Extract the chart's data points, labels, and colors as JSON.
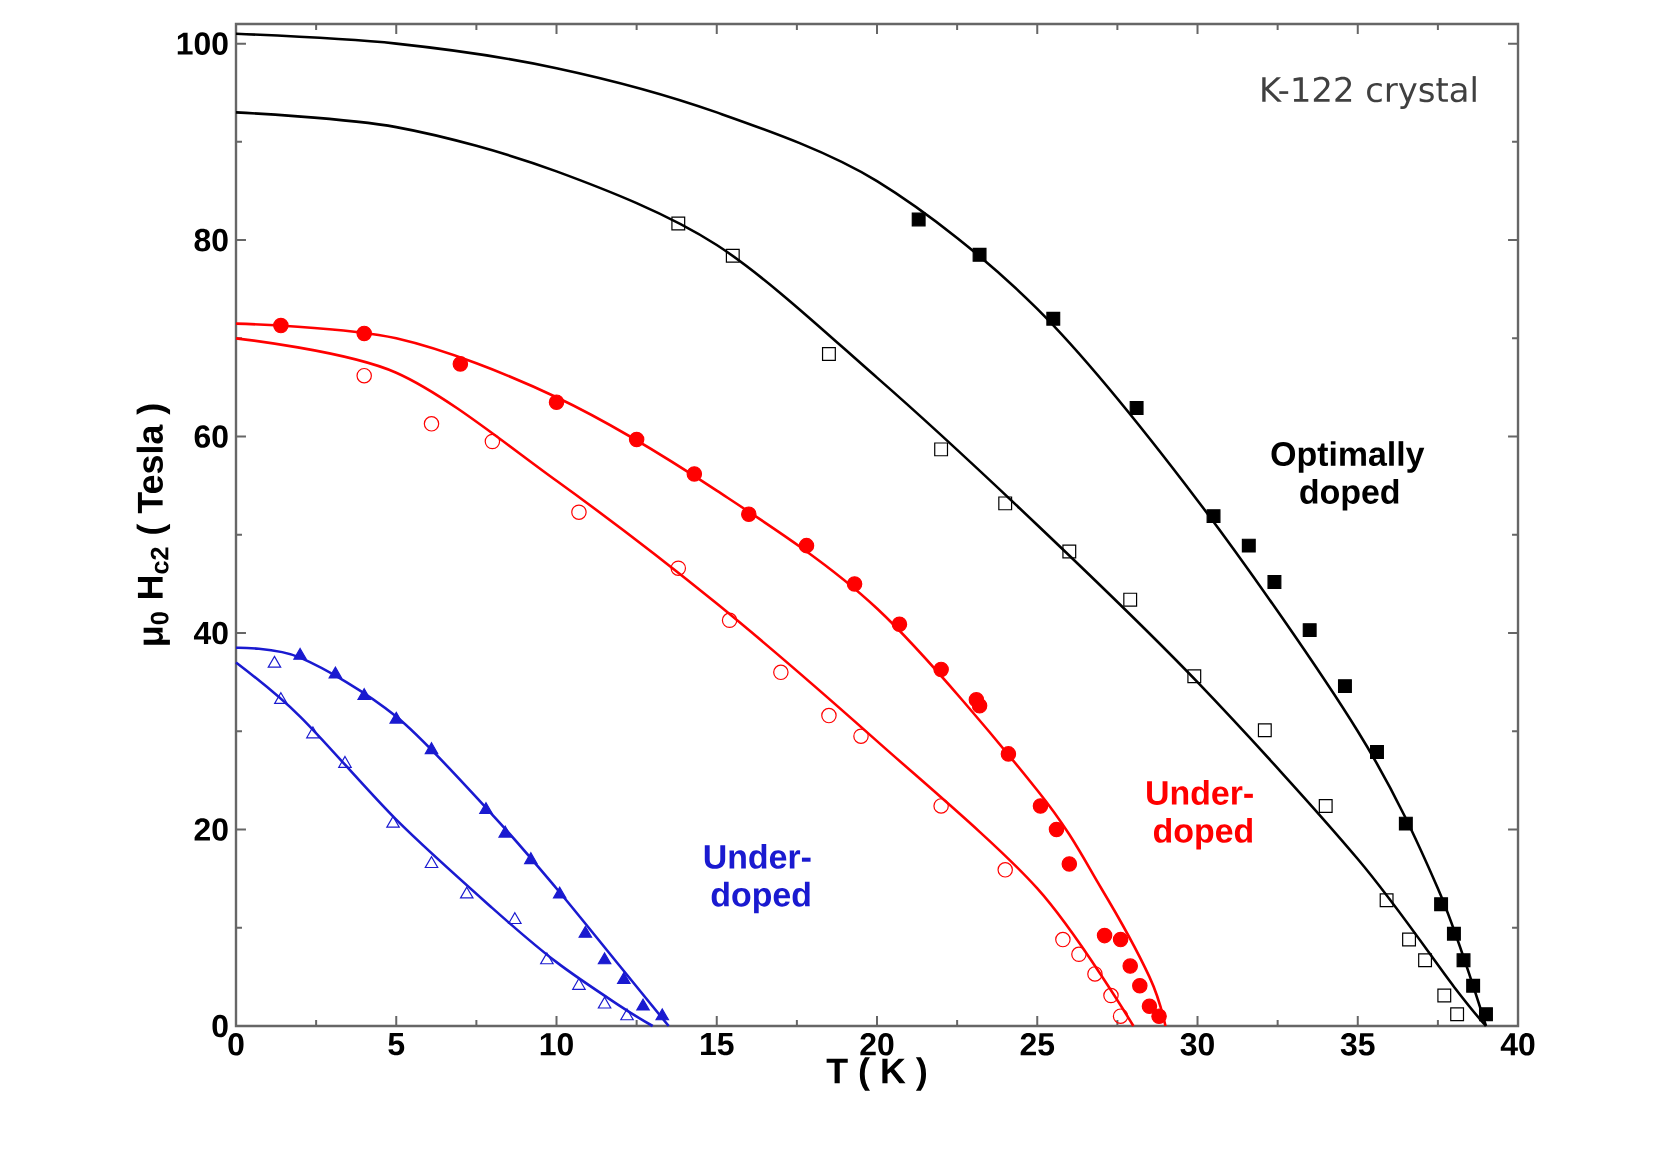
{
  "chart_data": {
    "type": "scatter",
    "xlabel": "T ( K )",
    "ylabel": "μ$_{0}$ H$_{c2}$ ( Tesla )",
    "xlim": [
      0,
      40
    ],
    "ylim": [
      0,
      102
    ],
    "xticks": [
      0,
      5,
      10,
      15,
      20,
      25,
      30,
      35,
      40
    ],
    "yticks": [
      0,
      20,
      40,
      60,
      80,
      100
    ],
    "grid": false,
    "annotations": [
      "K-122 crystal"
    ],
    "series": [
      {
        "name": "Optimally doped",
        "marker": "square",
        "color": "#000000",
        "x": [
          21.3,
          23.2,
          25.5,
          28.1,
          30.5,
          31.6,
          32.4,
          33.5,
          34.6,
          35.6,
          36.5,
          37.6,
          38.0,
          38.3,
          38.6,
          39.0
        ],
        "values": [
          82.1,
          78.5,
          72.0,
          62.9,
          51.9,
          48.9,
          45.2,
          40.3,
          34.6,
          27.9,
          20.6,
          12.4,
          9.4,
          6.7,
          4.1,
          1.2
        ]
      },
      {
        "marker": "square",
        "color": "#000000",
        "x": [
          13.8,
          15.5,
          18.5,
          22.0,
          24.0,
          26.0,
          27.9,
          29.9,
          32.1,
          34.0,
          35.9,
          36.6,
          37.1,
          37.7,
          38.1
        ],
        "values": [
          81.7,
          78.4,
          68.4,
          58.7,
          53.2,
          48.3,
          43.4,
          35.6,
          30.1,
          22.4,
          12.8,
          8.8,
          6.7,
          3.1,
          1.2
        ]
      },
      {
        "type": "line",
        "color": "#000000",
        "x": [
          0,
          5,
          10,
          15,
          20,
          25,
          30,
          35,
          37.5,
          39
        ],
        "values": [
          101,
          100,
          97.5,
          93,
          86,
          73,
          53.5,
          30,
          14,
          0
        ]
      },
      {
        "type": "line",
        "color": "#000000",
        "x": [
          0,
          5,
          10,
          15,
          20,
          25,
          30,
          35,
          38,
          39
        ],
        "values": [
          93,
          91.5,
          87,
          79.5,
          66,
          51,
          35,
          17,
          4,
          0
        ]
      },
      {
        "name": "Under-doped",
        "marker": "circle",
        "color": "#ff0000",
        "x": [
          1.4,
          4.0,
          7.0,
          10.0,
          12.5,
          14.3,
          16.0,
          17.8,
          19.3,
          20.7,
          22.0,
          23.1,
          23.2,
          24.1,
          25.1,
          25.6,
          26.0,
          27.1,
          27.6,
          27.9,
          28.2,
          28.5,
          28.8
        ],
        "values": [
          71.3,
          70.5,
          67.4,
          63.5,
          59.7,
          56.2,
          52.1,
          48.9,
          45.0,
          40.9,
          36.3,
          33.2,
          32.6,
          27.7,
          22.4,
          20.0,
          16.5,
          9.2,
          8.8,
          6.1,
          4.1,
          2.0,
          1.0
        ]
      },
      {
        "marker": "circle",
        "color": "#ff0000",
        "x": [
          4.0,
          6.1,
          8.0,
          10.7,
          13.8,
          15.4,
          17.0,
          18.5,
          19.5,
          22.0,
          24.0,
          25.8,
          26.3,
          26.8,
          27.3,
          27.6
        ],
        "values": [
          66.2,
          61.3,
          59.5,
          52.3,
          46.6,
          41.3,
          36.0,
          31.6,
          29.5,
          22.4,
          15.9,
          8.8,
          7.3,
          5.3,
          3.1,
          1.0
        ]
      },
      {
        "type": "line",
        "color": "#ff0000",
        "x": [
          0,
          5,
          10,
          15,
          20,
          25,
          27,
          28.5,
          29
        ],
        "values": [
          71.5,
          70,
          64,
          54.5,
          42.5,
          24,
          14,
          5,
          0
        ]
      },
      {
        "type": "line",
        "color": "#ff0000",
        "x": [
          0,
          5,
          10,
          15,
          20,
          25,
          28
        ],
        "values": [
          70,
          66.5,
          55.5,
          43,
          29,
          14,
          0
        ]
      },
      {
        "name": "Under-doped",
        "marker": "triangle",
        "color": "#1a1ad0",
        "x": [
          2.0,
          3.1,
          4.0,
          5.0,
          6.1,
          7.8,
          8.4,
          9.2,
          10.1,
          10.9,
          11.5,
          12.1,
          12.7,
          13.3
        ],
        "values": [
          37.7,
          35.8,
          33.6,
          31.2,
          28.1,
          22.0,
          19.6,
          16.9,
          13.4,
          9.4,
          6.7,
          4.7,
          2.0,
          1.0
        ]
      },
      {
        "marker": "triangle",
        "color": "#1a1ad0",
        "x": [
          1.2,
          1.4,
          2.4,
          3.4,
          4.9,
          6.1,
          7.2,
          8.7,
          9.7,
          10.7,
          11.5,
          12.2
        ],
        "values": [
          36.9,
          33.2,
          29.7,
          26.7,
          20.6,
          16.5,
          13.4,
          10.8,
          6.7,
          4.1,
          2.2,
          1.0
        ]
      },
      {
        "type": "line",
        "color": "#1a1ad0",
        "x": [
          0,
          2,
          5,
          8,
          10,
          12,
          13.5
        ],
        "values": [
          38.5,
          37.5,
          31.5,
          21.5,
          14,
          6,
          0
        ]
      },
      {
        "type": "line",
        "color": "#1a1ad0",
        "x": [
          0,
          2,
          5,
          8,
          10,
          12,
          13
        ],
        "values": [
          37,
          31.5,
          21,
          12,
          6.5,
          2,
          0
        ]
      }
    ]
  }
}
